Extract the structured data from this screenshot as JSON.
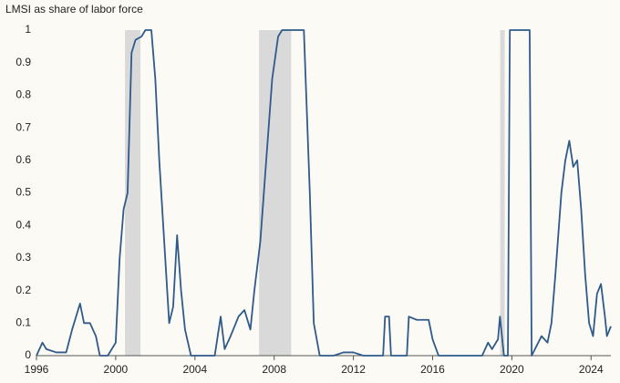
{
  "chart_data": {
    "type": "line",
    "ylabel": "LMSI as share of labor force",
    "color": "#2f5a8a",
    "recession_color": "#d9d9d9",
    "recessions": [
      [
        2000.47,
        2001.25
      ],
      [
        2007.24,
        2008.86
      ],
      [
        2019.41,
        2019.64
      ]
    ],
    "x": [
      1996.0,
      1996.3,
      1996.5,
      1997.0,
      1997.5,
      1997.8,
      1998.0,
      1998.2,
      1998.4,
      1998.7,
      1999.0,
      1999.2,
      1999.6,
      2000.0,
      2000.2,
      2000.4,
      2000.6,
      2000.8,
      2001.0,
      2001.3,
      2001.5,
      2001.8,
      2002.0,
      2002.2,
      2002.5,
      2002.7,
      2002.9,
      2003.1,
      2003.3,
      2003.5,
      2003.8,
      2005.0,
      2005.3,
      2005.5,
      2005.8,
      2006.2,
      2006.5,
      2006.8,
      2007.0,
      2007.3,
      2007.6,
      2007.9,
      2008.2,
      2008.4,
      2009.5,
      2009.8,
      2010.0,
      2010.3,
      2011.0,
      2011.5,
      2012.0,
      2012.5,
      2013.5,
      2013.6,
      2013.8,
      2013.9,
      2014.7,
      2014.8,
      2015.2,
      2015.8,
      2016.0,
      2016.3,
      2018.5,
      2018.8,
      2019.0,
      2019.3,
      2019.4,
      2019.6,
      2019.8,
      2019.9,
      2020.9,
      2021.0,
      2021.5,
      2021.8,
      2022.0,
      2022.2,
      2022.5,
      2022.7,
      2022.9,
      2023.1,
      2023.3,
      2023.5,
      2023.7,
      2023.9,
      2024.1,
      2024.3,
      2024.5,
      2024.7,
      2024.8,
      2025.0
    ],
    "values": [
      0.0,
      0.04,
      0.02,
      0.01,
      0.01,
      0.08,
      0.12,
      0.16,
      0.1,
      0.1,
      0.06,
      0.0,
      0.0,
      0.04,
      0.3,
      0.45,
      0.5,
      0.93,
      0.97,
      0.98,
      1,
      1,
      0.85,
      0.6,
      0.3,
      0.1,
      0.15,
      0.37,
      0.2,
      0.08,
      0.0,
      0.0,
      0.12,
      0.02,
      0.06,
      0.12,
      0.14,
      0.08,
      0.2,
      0.35,
      0.6,
      0.85,
      0.98,
      1,
      1,
      0.5,
      0.1,
      0.0,
      0.0,
      0.01,
      0.01,
      0.0,
      0.0,
      0.12,
      0.12,
      0.0,
      0.0,
      0.12,
      0.11,
      0.11,
      0.05,
      0.0,
      0.0,
      0.04,
      0.02,
      0.05,
      0.12,
      0.0,
      0.0,
      1,
      1,
      0.0,
      0.06,
      0.04,
      0.1,
      0.25,
      0.5,
      0.6,
      0.66,
      0.58,
      0.6,
      0.45,
      0.25,
      0.1,
      0.06,
      0.19,
      0.22,
      0.12,
      0.06,
      0.09
    ],
    "xlim": [
      1996,
      2025
    ],
    "ylim": [
      0,
      1
    ],
    "xticks": [
      1996,
      2000,
      2004,
      2008,
      2012,
      2016,
      2020,
      2024
    ],
    "yticks": [
      0,
      0.1,
      0.2,
      0.3,
      0.4,
      0.5,
      0.6,
      0.7,
      0.8,
      0.9,
      1
    ]
  }
}
